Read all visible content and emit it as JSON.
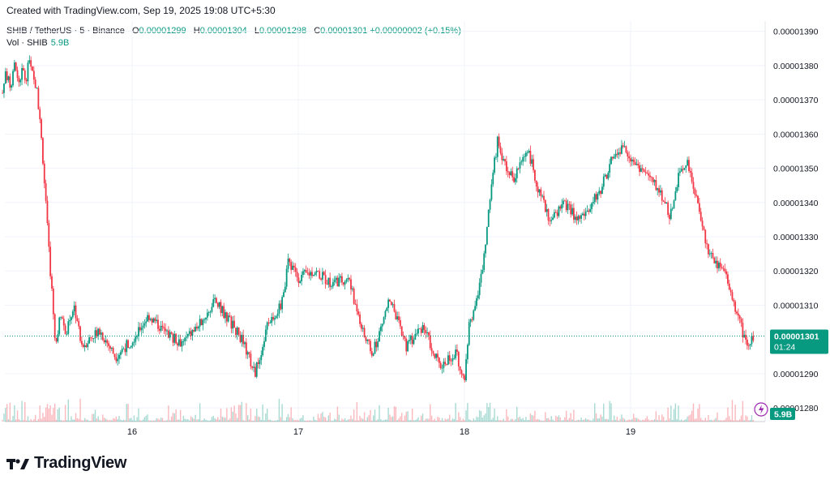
{
  "header": {
    "created": "Created with TradingView.com, Sep 19, 2025 19:08 UTC+5:30"
  },
  "legend": {
    "symbol": "SHIB / TetherUS · 5 · Binance",
    "o_label": "O",
    "o_value": "0.00001299",
    "h_label": "H",
    "h_value": "0.00001304",
    "l_label": "L",
    "l_value": "0.00001298",
    "c_label": "C",
    "c_value": "0.00001301",
    "change": "+0.00000002 (+0.15%)",
    "vol_label": "Vol · SHIB",
    "vol_value": "5.9B"
  },
  "footer": {
    "brand": "TradingView"
  },
  "colors": {
    "up": "#089981",
    "down": "#F23645",
    "grid": "#F0F3FA",
    "text": "#131722"
  },
  "chart_data": {
    "type": "candlestick",
    "interval": "5m",
    "x_ticks": [
      "16",
      "17",
      "18",
      "19"
    ],
    "y_ticks": [
      "0.00001390",
      "0.00001380",
      "0.00001370",
      "0.00001360",
      "0.00001350",
      "0.00001340",
      "0.00001330",
      "0.00001320",
      "0.00001310",
      "0.00001290",
      "0.00001280"
    ],
    "ylim": [
      1.276e-05,
      1.393e-05
    ],
    "last_price": "0.00001301",
    "countdown": "01:24",
    "volume_label": "5.9B",
    "price_path": [
      {
        "day": 15.22,
        "p": 1.372e-05
      },
      {
        "day": 15.24,
        "p": 1.378e-05
      },
      {
        "day": 15.27,
        "p": 1.373e-05
      },
      {
        "day": 15.29,
        "p": 1.38e-05
      },
      {
        "day": 15.32,
        "p": 1.375e-05
      },
      {
        "day": 15.34,
        "p": 1.379e-05
      },
      {
        "day": 15.36,
        "p": 1.376e-05
      },
      {
        "day": 15.38,
        "p": 1.381e-05
      },
      {
        "day": 15.43,
        "p": 1.372e-05
      },
      {
        "day": 15.46,
        "p": 1.355e-05
      },
      {
        "day": 15.48,
        "p": 1.34e-05
      },
      {
        "day": 15.5,
        "p": 1.325e-05
      },
      {
        "day": 15.52,
        "p": 1.312e-05
      },
      {
        "day": 15.54,
        "p": 1.298e-05
      },
      {
        "day": 15.57,
        "p": 1.308e-05
      },
      {
        "day": 15.6,
        "p": 1.302e-05
      },
      {
        "day": 15.65,
        "p": 1.31e-05
      },
      {
        "day": 15.7,
        "p": 1.298e-05
      },
      {
        "day": 15.8,
        "p": 1.303e-05
      },
      {
        "day": 15.9,
        "p": 1.295e-05
      },
      {
        "day": 16.0,
        "p": 1.3e-05
      },
      {
        "day": 16.1,
        "p": 1.307e-05
      },
      {
        "day": 16.2,
        "p": 1.302e-05
      },
      {
        "day": 16.3,
        "p": 1.299e-05
      },
      {
        "day": 16.4,
        "p": 1.304e-05
      },
      {
        "day": 16.5,
        "p": 1.311e-05
      },
      {
        "day": 16.58,
        "p": 1.306e-05
      },
      {
        "day": 16.66,
        "p": 1.3e-05
      },
      {
        "day": 16.74,
        "p": 1.29e-05
      },
      {
        "day": 16.82,
        "p": 1.305e-05
      },
      {
        "day": 16.9,
        "p": 1.31e-05
      },
      {
        "day": 16.94,
        "p": 1.323e-05
      },
      {
        "day": 17.0,
        "p": 1.318e-05
      },
      {
        "day": 17.1,
        "p": 1.32e-05
      },
      {
        "day": 17.2,
        "p": 1.316e-05
      },
      {
        "day": 17.3,
        "p": 1.318e-05
      },
      {
        "day": 17.4,
        "p": 1.3e-05
      },
      {
        "day": 17.45,
        "p": 1.296e-05
      },
      {
        "day": 17.55,
        "p": 1.312e-05
      },
      {
        "day": 17.65,
        "p": 1.298e-05
      },
      {
        "day": 17.75,
        "p": 1.304e-05
      },
      {
        "day": 17.85,
        "p": 1.292e-05
      },
      {
        "day": 17.95,
        "p": 1.296e-05
      },
      {
        "day": 18.0,
        "p": 1.288e-05
      },
      {
        "day": 18.03,
        "p": 1.305e-05
      },
      {
        "day": 18.08,
        "p": 1.312e-05
      },
      {
        "day": 18.12,
        "p": 1.325e-05
      },
      {
        "day": 18.16,
        "p": 1.345e-05
      },
      {
        "day": 18.2,
        "p": 1.358e-05
      },
      {
        "day": 18.25,
        "p": 1.35e-05
      },
      {
        "day": 18.3,
        "p": 1.347e-05
      },
      {
        "day": 18.38,
        "p": 1.356e-05
      },
      {
        "day": 18.45,
        "p": 1.343e-05
      },
      {
        "day": 18.52,
        "p": 1.334e-05
      },
      {
        "day": 18.6,
        "p": 1.34e-05
      },
      {
        "day": 18.68,
        "p": 1.335e-05
      },
      {
        "day": 18.75,
        "p": 1.338e-05
      },
      {
        "day": 18.82,
        "p": 1.344e-05
      },
      {
        "day": 18.9,
        "p": 1.354e-05
      },
      {
        "day": 18.96,
        "p": 1.356e-05
      },
      {
        "day": 19.02,
        "p": 1.352e-05
      },
      {
        "day": 19.1,
        "p": 1.348e-05
      },
      {
        "day": 19.18,
        "p": 1.343e-05
      },
      {
        "day": 19.24,
        "p": 1.336e-05
      },
      {
        "day": 19.3,
        "p": 1.35e-05
      },
      {
        "day": 19.34,
        "p": 1.352e-05
      },
      {
        "day": 19.38,
        "p": 1.344e-05
      },
      {
        "day": 19.42,
        "p": 1.336e-05
      },
      {
        "day": 19.46,
        "p": 1.327e-05
      },
      {
        "day": 19.52,
        "p": 1.322e-05
      },
      {
        "day": 19.58,
        "p": 1.318e-05
      },
      {
        "day": 19.62,
        "p": 1.31e-05
      },
      {
        "day": 19.66,
        "p": 1.305e-05
      },
      {
        "day": 19.7,
        "p": 1.297e-05
      },
      {
        "day": 19.74,
        "p": 1.301e-05
      }
    ]
  }
}
